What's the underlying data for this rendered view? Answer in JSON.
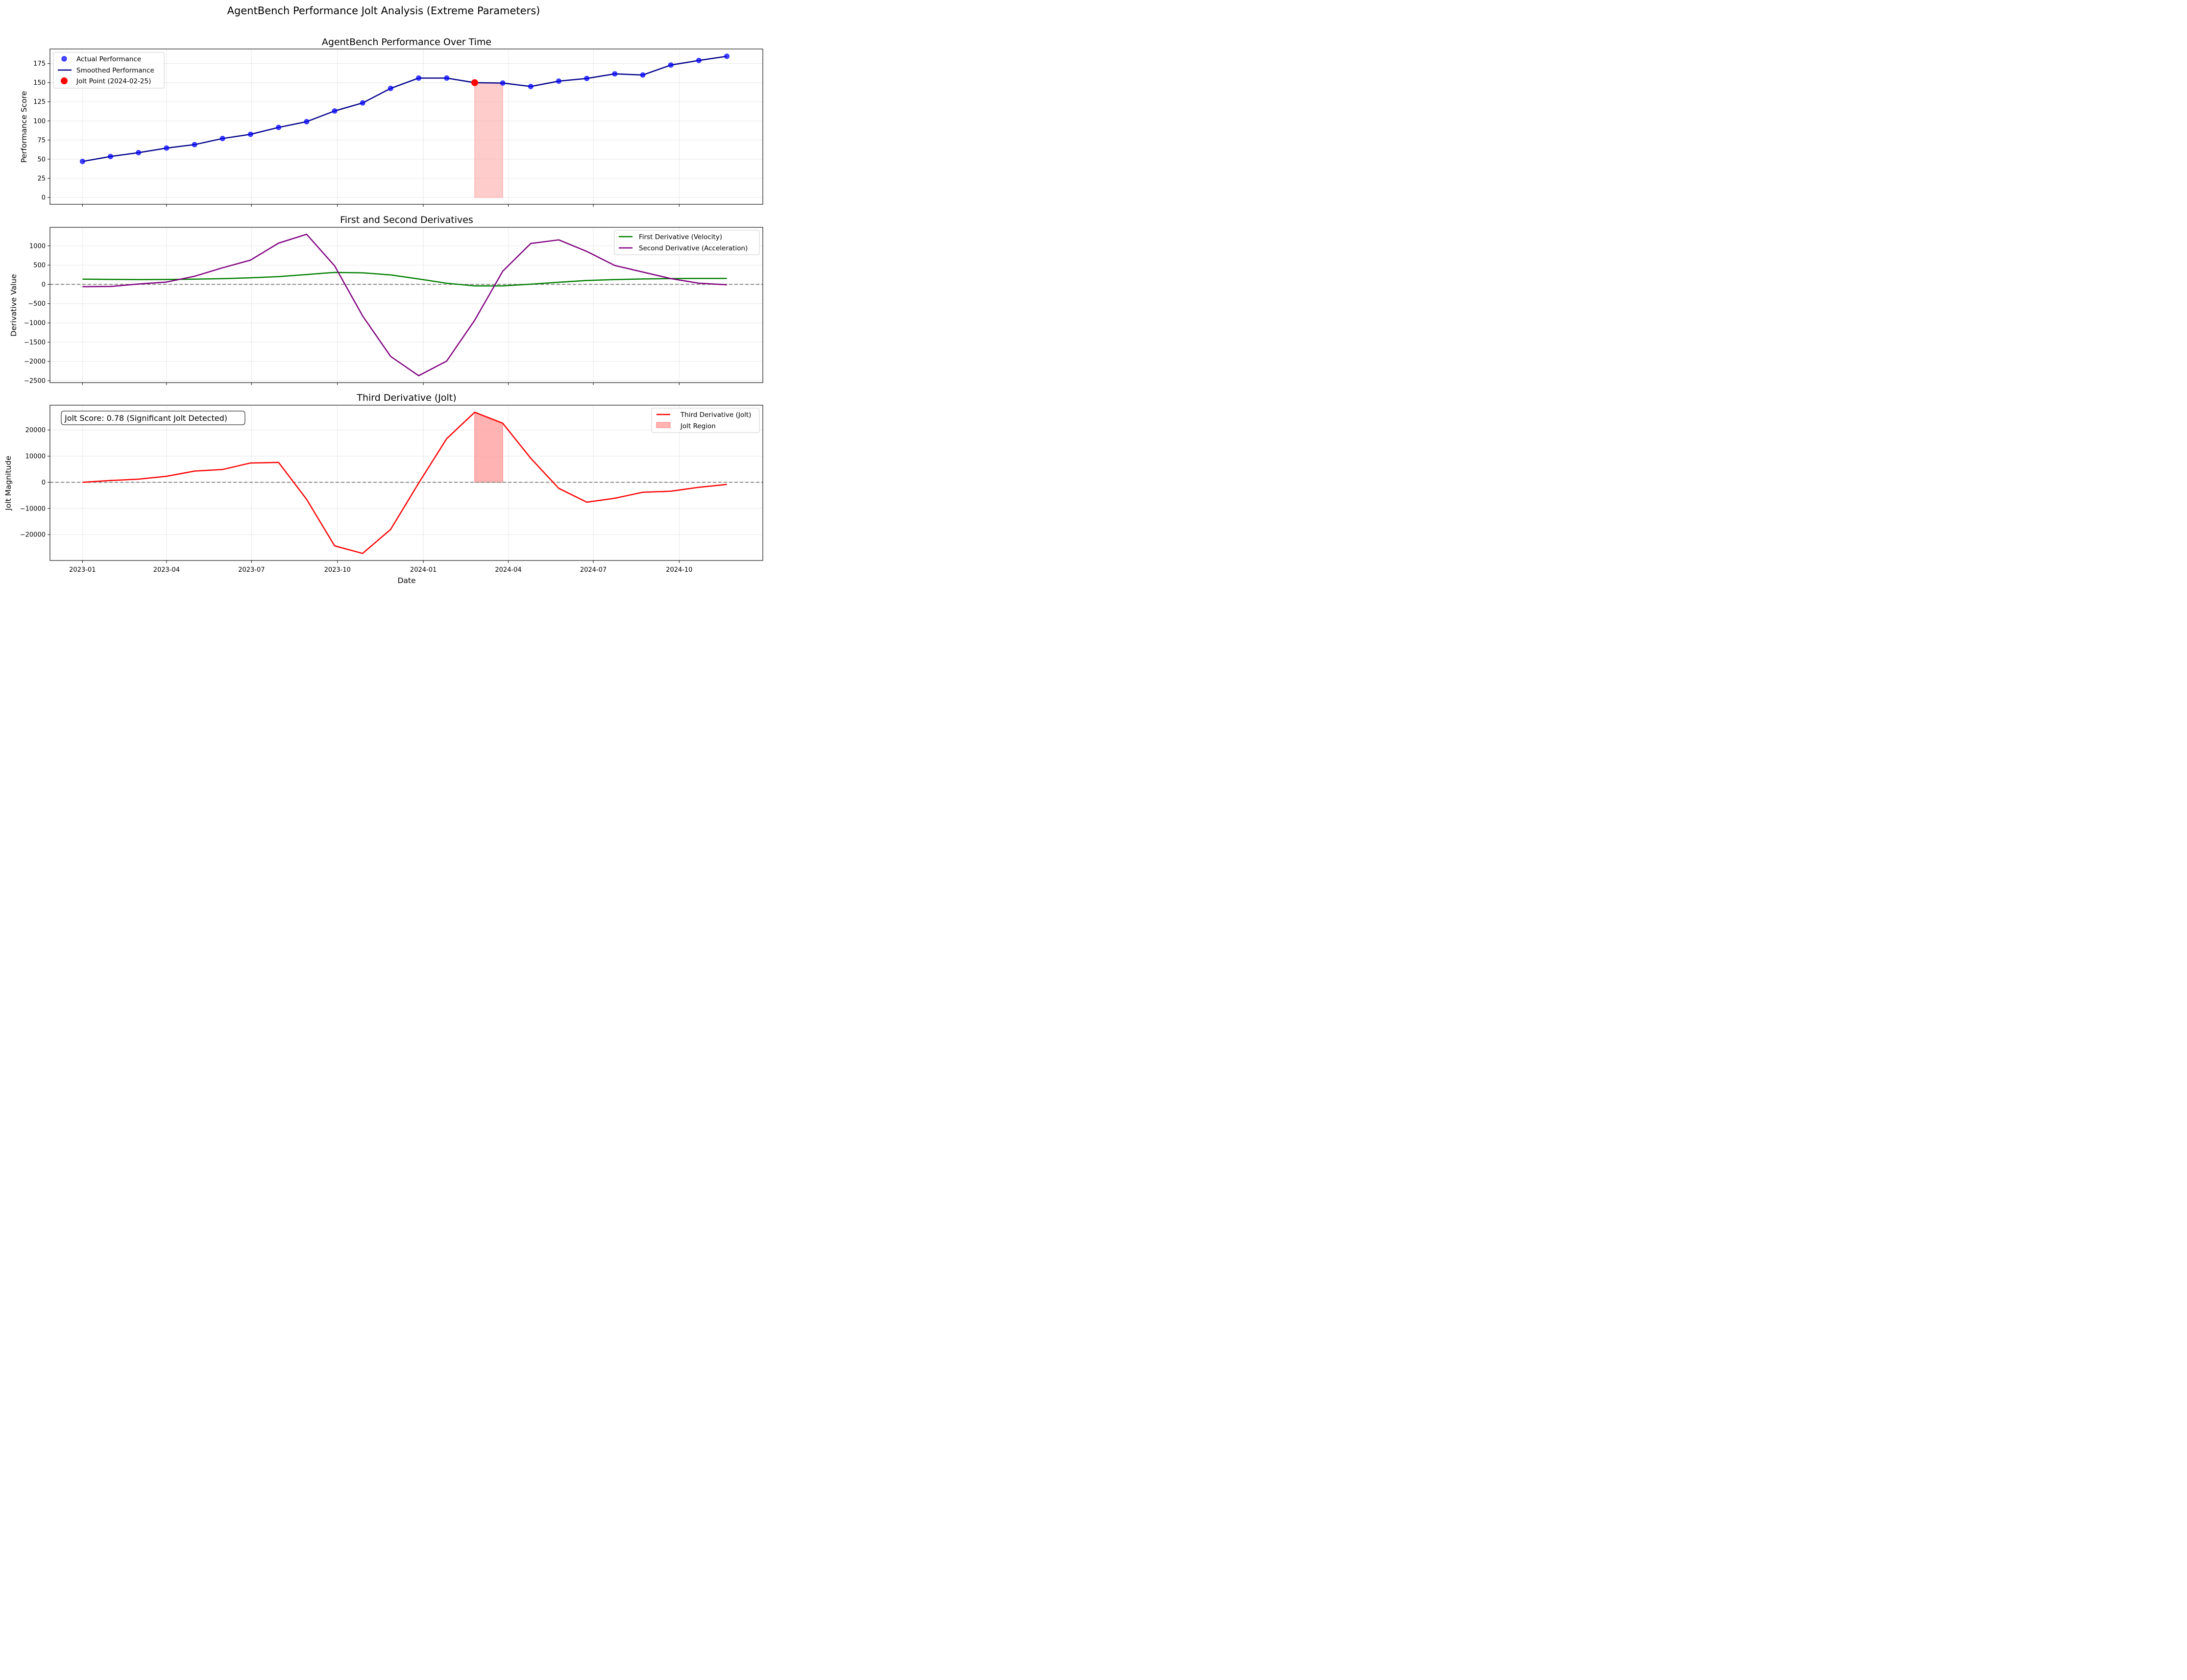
{
  "figure": {
    "title": "AgentBench Performance Jolt Analysis (Extreme Parameters)",
    "xlabel": "Date"
  },
  "colors": {
    "actual": "#0000ff",
    "smoothed": "#00008b",
    "jolt_point": "#ff0000",
    "velocity": "#008000",
    "acceleration": "#800080",
    "jolt": "#ff0000",
    "region": "#ff9999",
    "zero_line": "#808080"
  },
  "chart_data": [
    {
      "type": "line",
      "title": "AgentBench Performance Over Time",
      "ylabel": "Performance Score",
      "xlabel": "",
      "ylim": [
        -9,
        194
      ],
      "yticks": [
        0,
        25,
        50,
        75,
        100,
        125,
        150,
        175
      ],
      "x": [
        "2023-01-01",
        "2023-01-31",
        "2023-03-02",
        "2023-04-01",
        "2023-05-01",
        "2023-05-31",
        "2023-06-30",
        "2023-07-30",
        "2023-08-29",
        "2023-09-28",
        "2023-10-28",
        "2023-11-27",
        "2023-12-27",
        "2024-01-26",
        "2024-02-25",
        "2024-03-26",
        "2024-04-25",
        "2024-05-25",
        "2024-06-24",
        "2024-07-24",
        "2024-08-23",
        "2024-09-22",
        "2024-10-22",
        "2024-11-21"
      ],
      "series": [
        {
          "name": "Actual Performance",
          "style": "scatter",
          "values": [
            47,
            53.5,
            58.5,
            64.5,
            69,
            77,
            82.5,
            91.5,
            99,
            113,
            123.5,
            142.5,
            156,
            156,
            150,
            149.5,
            145,
            152,
            155.5,
            161.5,
            160,
            173,
            179,
            184.5
          ]
        },
        {
          "name": "Smoothed Performance",
          "style": "line",
          "values": [
            47,
            53.5,
            58.5,
            64.5,
            69,
            77,
            82.5,
            91.5,
            99,
            113,
            123.5,
            142.5,
            156,
            156,
            150,
            149.5,
            145,
            152,
            155.5,
            161.5,
            160,
            173,
            179,
            184.5
          ]
        },
        {
          "name": "Jolt Point (2024-02-25)",
          "style": "marker",
          "x": [
            "2024-02-25"
          ],
          "values": [
            150
          ]
        }
      ],
      "region": {
        "x_start": "2024-02-25",
        "x_end": "2024-03-26",
        "y_top": [
          150,
          149.5
        ]
      },
      "legend_position": "top-left"
    },
    {
      "type": "line",
      "title": "First and Second Derivatives",
      "ylabel": "Derivative Value",
      "xlabel": "",
      "ylim": [
        -2550,
        1480
      ],
      "yticks": [
        -2500,
        -2000,
        -1500,
        -1000,
        -500,
        0,
        500,
        1000
      ],
      "x": [
        "2023-01-01",
        "2023-01-31",
        "2023-03-02",
        "2023-04-01",
        "2023-05-01",
        "2023-05-31",
        "2023-06-30",
        "2023-07-30",
        "2023-08-29",
        "2023-09-28",
        "2023-10-28",
        "2023-11-27",
        "2023-12-27",
        "2024-01-26",
        "2024-02-25",
        "2024-03-26",
        "2024-04-25",
        "2024-05-25",
        "2024-06-24",
        "2024-07-24",
        "2024-08-23",
        "2024-09-22",
        "2024-10-22",
        "2024-11-21"
      ],
      "series": [
        {
          "name": "First Derivative (Velocity)",
          "values": [
            135,
            130,
            125,
            128,
            135,
            148,
            170,
            200,
            255,
            310,
            300,
            245,
            140,
            30,
            -40,
            -40,
            5,
            55,
            100,
            125,
            140,
            150,
            155,
            155
          ]
        },
        {
          "name": "Second Derivative (Acceleration)",
          "values": [
            -60,
            -55,
            10,
            60,
            210,
            430,
            630,
            1070,
            1300,
            480,
            -820,
            -1870,
            -2370,
            -1990,
            -930,
            340,
            1060,
            1155,
            855,
            490,
            320,
            150,
            30,
            -10
          ]
        }
      ],
      "zero_line": true,
      "legend_position": "top-right"
    },
    {
      "type": "line",
      "title": "Third Derivative (Jolt)",
      "ylabel": "Jolt Magnitude",
      "xlabel": "Date",
      "ylim": [
        -29900,
        29500
      ],
      "yticks": [
        -20000,
        -10000,
        0,
        10000,
        20000
      ],
      "xticks": [
        "2023-01",
        "2023-04",
        "2023-07",
        "2023-10",
        "2024-01",
        "2024-04",
        "2024-07",
        "2024-10"
      ],
      "x": [
        "2023-01-01",
        "2023-01-31",
        "2023-03-02",
        "2023-04-01",
        "2023-05-01",
        "2023-05-31",
        "2023-06-30",
        "2023-07-30",
        "2023-08-29",
        "2023-09-28",
        "2023-10-28",
        "2023-11-27",
        "2023-12-27",
        "2024-01-26",
        "2024-02-25",
        "2024-03-26",
        "2024-04-25",
        "2024-05-25",
        "2024-06-24",
        "2024-07-24",
        "2024-08-23",
        "2024-09-22",
        "2024-10-22",
        "2024-11-21"
      ],
      "series": [
        {
          "name": "Third Derivative (Jolt)",
          "values": [
            0,
            700,
            1200,
            2300,
            4300,
            4900,
            7400,
            7600,
            -6500,
            -24300,
            -27200,
            -18000,
            -300,
            16700,
            26800,
            22600,
            9200,
            -2300,
            -7600,
            -6100,
            -3800,
            -3400,
            -1900,
            -800
          ]
        },
        {
          "name": "Jolt Region",
          "style": "fill",
          "x_start": "2024-02-25",
          "x_end": "2024-03-26",
          "y_top": [
            26800,
            22600
          ]
        }
      ],
      "annotation": "Jolt Score: 0.78 (Significant Jolt Detected)",
      "zero_line": true,
      "legend_position": "top-right"
    }
  ]
}
